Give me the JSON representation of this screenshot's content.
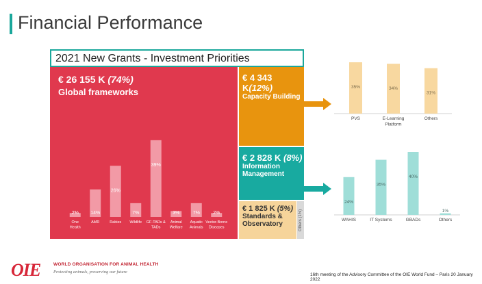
{
  "page": {
    "title": "Financial Performance",
    "subtitle": "2021 New Grants - Investment Priorities",
    "accent_color": "#1aa79b"
  },
  "blocks": {
    "global": {
      "value": "€  26 155 K",
      "pct": "(74%)",
      "label": "Global frameworks",
      "color": "#e0394e"
    },
    "capacity": {
      "value": "€ 4 343 K",
      "pct": "(12%)",
      "label": "Capacity Building",
      "color": "#e8940e"
    },
    "information": {
      "value": "€ 2 828 K",
      "pct": "(8%)",
      "label": "Information Management",
      "color": "#18aaa0"
    },
    "standards": {
      "value": "€ 1 825 K",
      "pct": "(5%)",
      "label": "Standards & Observatory",
      "color": "#f6d49a"
    },
    "others": {
      "label": "Others (1%)",
      "color": "#d9d9d9"
    }
  },
  "chart_data": [
    {
      "type": "bar",
      "categories": [
        "One Health",
        "AMR",
        "Rabies",
        "Wildlife",
        "GF-TADs & TADs",
        "Animal Welfare",
        "Aquatic Animals",
        "Vector-Borne Diseases"
      ],
      "values": [
        2,
        14,
        26,
        7,
        39,
        3,
        7,
        2
      ],
      "data_labels": [
        "2%",
        "14%",
        "26%",
        "7%",
        "39%",
        "3%",
        "7%",
        "2%"
      ],
      "bar_color": "#f29aa6",
      "ylim": [
        0,
        40
      ]
    },
    {
      "type": "bar",
      "categories": [
        "PVS",
        "E-Learning Platform",
        "Others"
      ],
      "values": [
        35,
        34,
        31
      ],
      "data_labels": [
        "35%",
        "34%",
        "31%"
      ],
      "bar_color": "#f8d8a0",
      "ylim": [
        0,
        35
      ]
    },
    {
      "type": "bar",
      "categories": [
        "WAHIS",
        "IT Systems",
        "GBADs",
        "Others"
      ],
      "values": [
        24,
        35,
        40,
        1
      ],
      "data_labels": [
        "24%",
        "35%",
        "40%",
        "1%"
      ],
      "bar_color": "#9fded8",
      "ylim": [
        0,
        40
      ]
    }
  ],
  "footer": {
    "logo_text": "OIE",
    "org_name": "WORLD ORGANISATION FOR ANIMAL HEALTH",
    "tagline": "Protecting animals, preserving our future",
    "meeting_note": "16th meeting of the Advisory Committee of the OIE World Fund – Paris 20 January 2022"
  }
}
